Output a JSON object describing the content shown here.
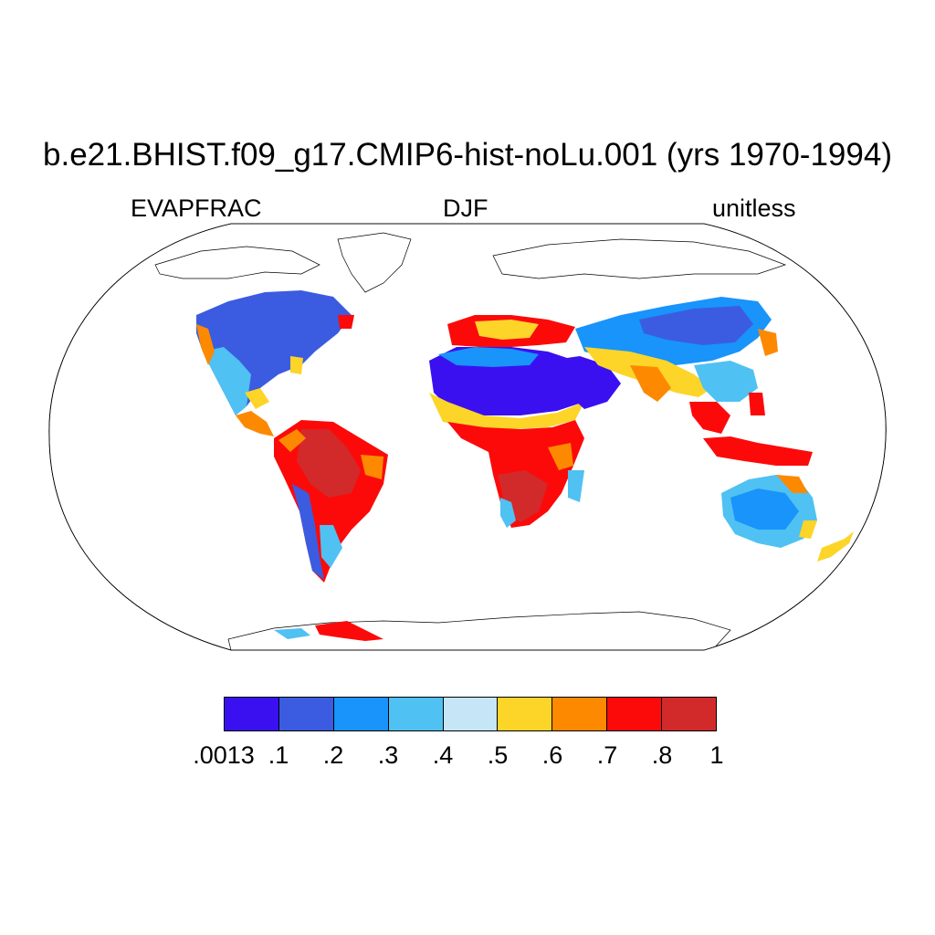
{
  "title": "b.e21.BHIST.f09_g17.CMIP6-hist-noLu.001 (yrs 1970-1994)",
  "left_label": "EVAPFRAC",
  "center_label": "DJF",
  "right_label": "unitless",
  "colorbar": {
    "labels": [
      ".0013",
      ".1",
      ".2",
      ".3",
      ".4",
      ".5",
      ".6",
      ".7",
      ".8",
      "1"
    ],
    "colors": [
      "#3a10f0",
      "#3b5ce0",
      "#1894fb",
      "#4fc1f3",
      "#c6e6f7",
      "#fdd428",
      "#fd8900",
      "#fc0a0a",
      "#d22a2a"
    ]
  },
  "map": {
    "projection": "Robinson",
    "variable": "EVAPFRAC",
    "season": "DJF"
  }
}
